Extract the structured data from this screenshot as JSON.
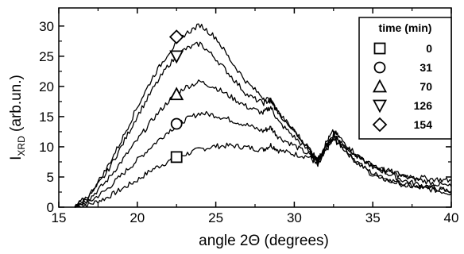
{
  "chart_data": {
    "type": "line",
    "xlabel": "angle 2Θ (degrees)",
    "ylabel_main": "I",
    "ylabel_sub": "XRD",
    "ylabel_rest": " (arb.un.)",
    "xlim": [
      15,
      40
    ],
    "ylim": [
      0,
      33
    ],
    "x_ticks": [
      15,
      20,
      25,
      30,
      35,
      40
    ],
    "y_ticks": [
      0,
      5,
      10,
      15,
      20,
      25,
      30
    ],
    "grid": false,
    "legend_position": "top-right",
    "legend_title": "time (min)",
    "series": [
      {
        "name": "0",
        "marker": "square",
        "marker_at": [
          22.5,
          8.3
        ],
        "points": [
          [
            16.0,
            0
          ],
          [
            17.0,
            0.5
          ],
          [
            18.0,
            1.5
          ],
          [
            19.0,
            3.0
          ],
          [
            20.0,
            4.5
          ],
          [
            21.0,
            6.3
          ],
          [
            22.0,
            7.6
          ],
          [
            23.0,
            8.7
          ],
          [
            24.0,
            9.6
          ],
          [
            25.0,
            10.1
          ],
          [
            26.0,
            10.2
          ],
          [
            27.0,
            9.9
          ],
          [
            28.0,
            9.5
          ],
          [
            28.5,
            10.3
          ],
          [
            29.0,
            9.4
          ],
          [
            30.0,
            8.8
          ],
          [
            31.0,
            8.3
          ],
          [
            31.5,
            6.8
          ],
          [
            32.0,
            9.3
          ],
          [
            32.5,
            11.2
          ],
          [
            33.0,
            10.1
          ],
          [
            34.0,
            7.3
          ],
          [
            35.0,
            5.6
          ],
          [
            36.0,
            4.6
          ],
          [
            37.0,
            3.8
          ],
          [
            38.0,
            3.4
          ],
          [
            39.0,
            3.0
          ],
          [
            40.0,
            2.7
          ]
        ]
      },
      {
        "name": "31",
        "marker": "circle",
        "marker_at": [
          22.5,
          13.8
        ],
        "points": [
          [
            16.0,
            0
          ],
          [
            17.0,
            1.0
          ],
          [
            18.0,
            2.8
          ],
          [
            19.0,
            5.3
          ],
          [
            20.0,
            7.8
          ],
          [
            21.0,
            10.3
          ],
          [
            22.0,
            12.6
          ],
          [
            23.0,
            14.4
          ],
          [
            24.0,
            15.6
          ],
          [
            25.0,
            15.2
          ],
          [
            26.0,
            14.4
          ],
          [
            27.0,
            13.6
          ],
          [
            28.0,
            12.6
          ],
          [
            28.5,
            13.2
          ],
          [
            29.0,
            11.6
          ],
          [
            30.0,
            10.2
          ],
          [
            31.0,
            8.6
          ],
          [
            31.5,
            7.4
          ],
          [
            32.0,
            9.6
          ],
          [
            32.5,
            11.6
          ],
          [
            33.0,
            10.4
          ],
          [
            34.0,
            7.5
          ],
          [
            35.0,
            5.3
          ],
          [
            36.0,
            4.4
          ],
          [
            37.0,
            3.7
          ],
          [
            38.0,
            3.2
          ],
          [
            39.0,
            2.8
          ],
          [
            40.0,
            2.3
          ]
        ]
      },
      {
        "name": "70",
        "marker": "triangle-up",
        "marker_at": [
          22.5,
          18.7
        ],
        "points": [
          [
            16.0,
            0
          ],
          [
            17.0,
            1.5
          ],
          [
            18.0,
            4.2
          ],
          [
            19.0,
            7.6
          ],
          [
            20.0,
            11.1
          ],
          [
            21.0,
            14.6
          ],
          [
            22.0,
            17.6
          ],
          [
            23.0,
            19.8
          ],
          [
            24.0,
            20.8
          ],
          [
            25.0,
            19.8
          ],
          [
            26.0,
            18.2
          ],
          [
            27.0,
            16.6
          ],
          [
            28.0,
            15.6
          ],
          [
            28.5,
            16.6
          ],
          [
            29.0,
            14.1
          ],
          [
            30.0,
            11.6
          ],
          [
            31.0,
            9.1
          ],
          [
            31.5,
            7.6
          ],
          [
            32.0,
            10.1
          ],
          [
            32.5,
            12.1
          ],
          [
            33.0,
            10.8
          ],
          [
            34.0,
            8.3
          ],
          [
            35.0,
            6.8
          ],
          [
            36.0,
            5.5
          ],
          [
            37.0,
            4.4
          ],
          [
            38.0,
            3.7
          ],
          [
            39.0,
            3.1
          ],
          [
            40.0,
            2.6
          ]
        ]
      },
      {
        "name": "126",
        "marker": "triangle-down",
        "marker_at": [
          22.5,
          25.0
        ],
        "points": [
          [
            16.0,
            0
          ],
          [
            17.0,
            2.0
          ],
          [
            18.0,
            5.5
          ],
          [
            19.0,
            10.1
          ],
          [
            20.0,
            15.1
          ],
          [
            21.0,
            19.6
          ],
          [
            22.0,
            23.6
          ],
          [
            23.0,
            26.1
          ],
          [
            24.0,
            27.1
          ],
          [
            25.0,
            24.6
          ],
          [
            26.0,
            21.6
          ],
          [
            27.0,
            18.6
          ],
          [
            28.0,
            17.2
          ],
          [
            28.5,
            17.8
          ],
          [
            29.0,
            15.6
          ],
          [
            30.0,
            12.6
          ],
          [
            31.0,
            9.6
          ],
          [
            31.5,
            7.8
          ],
          [
            32.0,
            10.6
          ],
          [
            32.5,
            12.6
          ],
          [
            33.0,
            11.2
          ],
          [
            34.0,
            8.6
          ],
          [
            35.0,
            6.8
          ],
          [
            36.0,
            5.8
          ],
          [
            37.0,
            5.0
          ],
          [
            38.0,
            4.5
          ],
          [
            39.0,
            3.9
          ],
          [
            40.0,
            3.4
          ]
        ]
      },
      {
        "name": "154",
        "marker": "diamond",
        "marker_at": [
          22.5,
          28.2
        ],
        "points": [
          [
            16.0,
            0
          ],
          [
            17.0,
            2.2
          ],
          [
            18.0,
            6.2
          ],
          [
            19.0,
            11.1
          ],
          [
            20.0,
            16.6
          ],
          [
            21.0,
            21.6
          ],
          [
            22.0,
            25.6
          ],
          [
            23.0,
            28.6
          ],
          [
            24.0,
            30.2
          ],
          [
            25.0,
            28.1
          ],
          [
            26.0,
            24.1
          ],
          [
            27.0,
            20.6
          ],
          [
            28.0,
            18.2
          ],
          [
            28.5,
            17.6
          ],
          [
            29.0,
            15.6
          ],
          [
            30.0,
            12.6
          ],
          [
            31.0,
            9.4
          ],
          [
            31.5,
            7.6
          ],
          [
            32.0,
            10.3
          ],
          [
            32.5,
            11.6
          ],
          [
            33.0,
            10.6
          ],
          [
            34.0,
            8.3
          ],
          [
            35.0,
            6.8
          ],
          [
            36.0,
            6.0
          ],
          [
            37.0,
            5.3
          ],
          [
            38.0,
            4.9
          ],
          [
            39.0,
            4.6
          ],
          [
            40.0,
            4.4
          ]
        ]
      }
    ]
  }
}
